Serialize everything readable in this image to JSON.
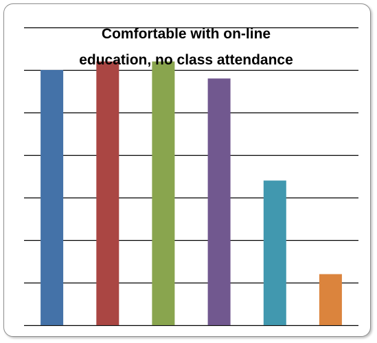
{
  "chart_data": {
    "type": "bar",
    "title_lines": [
      "Comfortable with on-line",
      "education, no class attendance"
    ],
    "categories": [
      "",
      "",
      "",
      "",
      "",
      ""
    ],
    "values": [
      6.0,
      6.2,
      6.2,
      5.8,
      3.4,
      1.2
    ],
    "ylim": [
      0,
      7
    ],
    "yticks": [
      0,
      1,
      2,
      3,
      4,
      5,
      6,
      7
    ],
    "grid": true,
    "legend": "none",
    "colors": [
      "#4472A8",
      "#AA4643",
      "#89A54E",
      "#71588F",
      "#4198AF",
      "#DB843D"
    ]
  }
}
